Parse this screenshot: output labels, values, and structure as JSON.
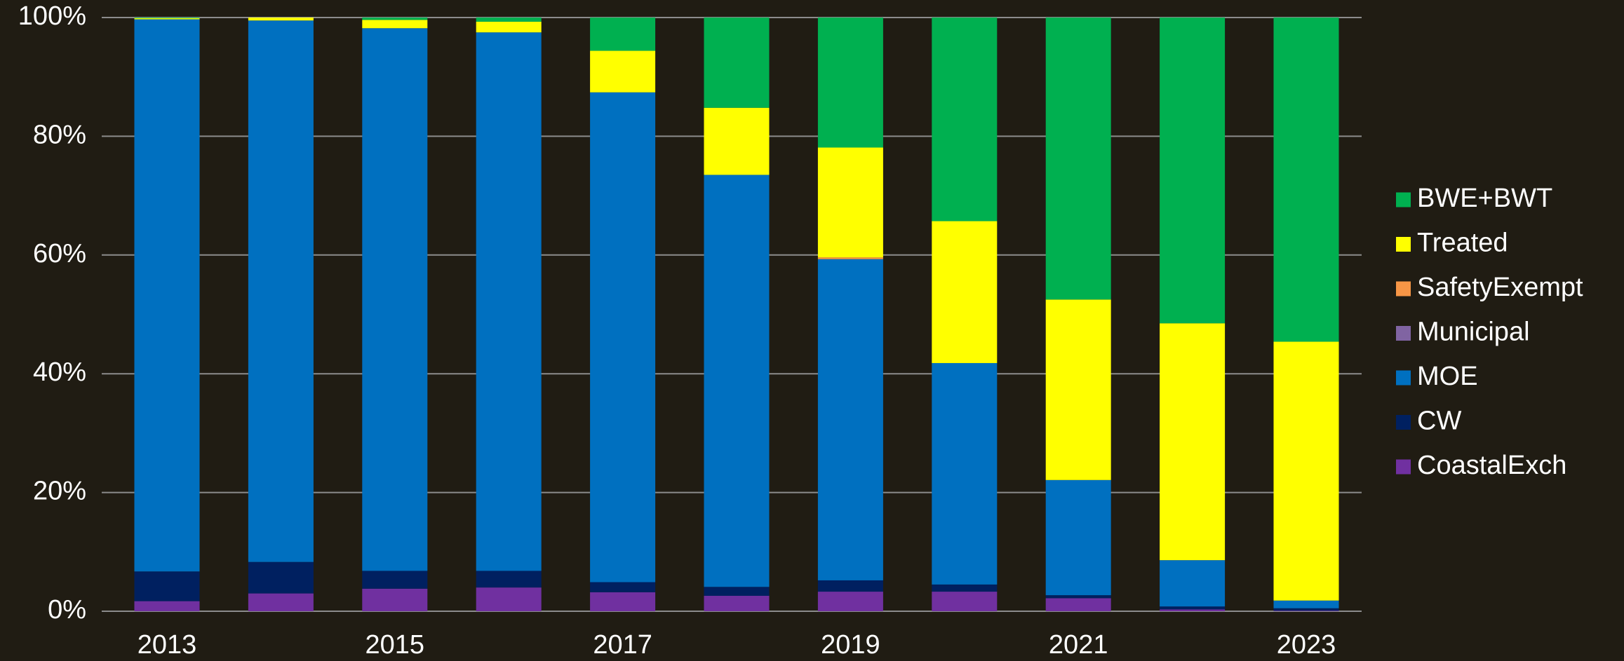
{
  "chart_data": {
    "type": "stacked_bar_percent",
    "categories": [
      "2013",
      null,
      "2015",
      null,
      "2017",
      null,
      "2019",
      null,
      "2021",
      null,
      "2023"
    ],
    "series": [
      {
        "name": "CoastalExch",
        "color": "#7030a0",
        "values": [
          1.7,
          3.0,
          3.8,
          4.0,
          3.2,
          2.6,
          3.3,
          3.3,
          2.2,
          0.3,
          0.1
        ]
      },
      {
        "name": "CW",
        "color": "#002060",
        "values": [
          5.0,
          5.3,
          3.0,
          2.8,
          1.7,
          1.5,
          1.9,
          1.2,
          0.5,
          0.5,
          0.4
        ]
      },
      {
        "name": "MOE",
        "color": "#0070c0",
        "values": [
          93.0,
          91.2,
          91.4,
          90.7,
          82.5,
          69.4,
          54.1,
          37.3,
          19.4,
          7.8,
          1.3
        ]
      },
      {
        "name": "Municipal",
        "color": "#8064a2",
        "values": [
          0,
          0,
          0,
          0,
          0,
          0,
          0,
          0,
          0,
          0,
          0
        ]
      },
      {
        "name": "SafetyExempt",
        "color": "#f79646",
        "values": [
          0,
          0,
          0,
          0,
          0,
          0,
          0.3,
          0,
          0,
          0,
          0
        ]
      },
      {
        "name": "Treated",
        "color": "#ffff00",
        "values": [
          0.2,
          0.5,
          1.4,
          1.8,
          7.0,
          11.3,
          18.5,
          23.9,
          30.4,
          39.9,
          43.6
        ]
      },
      {
        "name": "BWE+BWT",
        "color": "#00b050",
        "values": [
          0.1,
          0,
          0.4,
          0.7,
          5.6,
          15.2,
          21.9,
          34.3,
          47.5,
          51.5,
          54.6
        ]
      }
    ],
    "ylim": [
      0,
      100
    ],
    "yticks": [
      {
        "value": 0,
        "label": "0%"
      },
      {
        "value": 20,
        "label": "20%"
      },
      {
        "value": 40,
        "label": "40%"
      },
      {
        "value": 60,
        "label": "60%"
      },
      {
        "value": 80,
        "label": "80%"
      },
      {
        "value": 100,
        "label": "100%"
      }
    ],
    "grid": true,
    "legend": "right"
  }
}
